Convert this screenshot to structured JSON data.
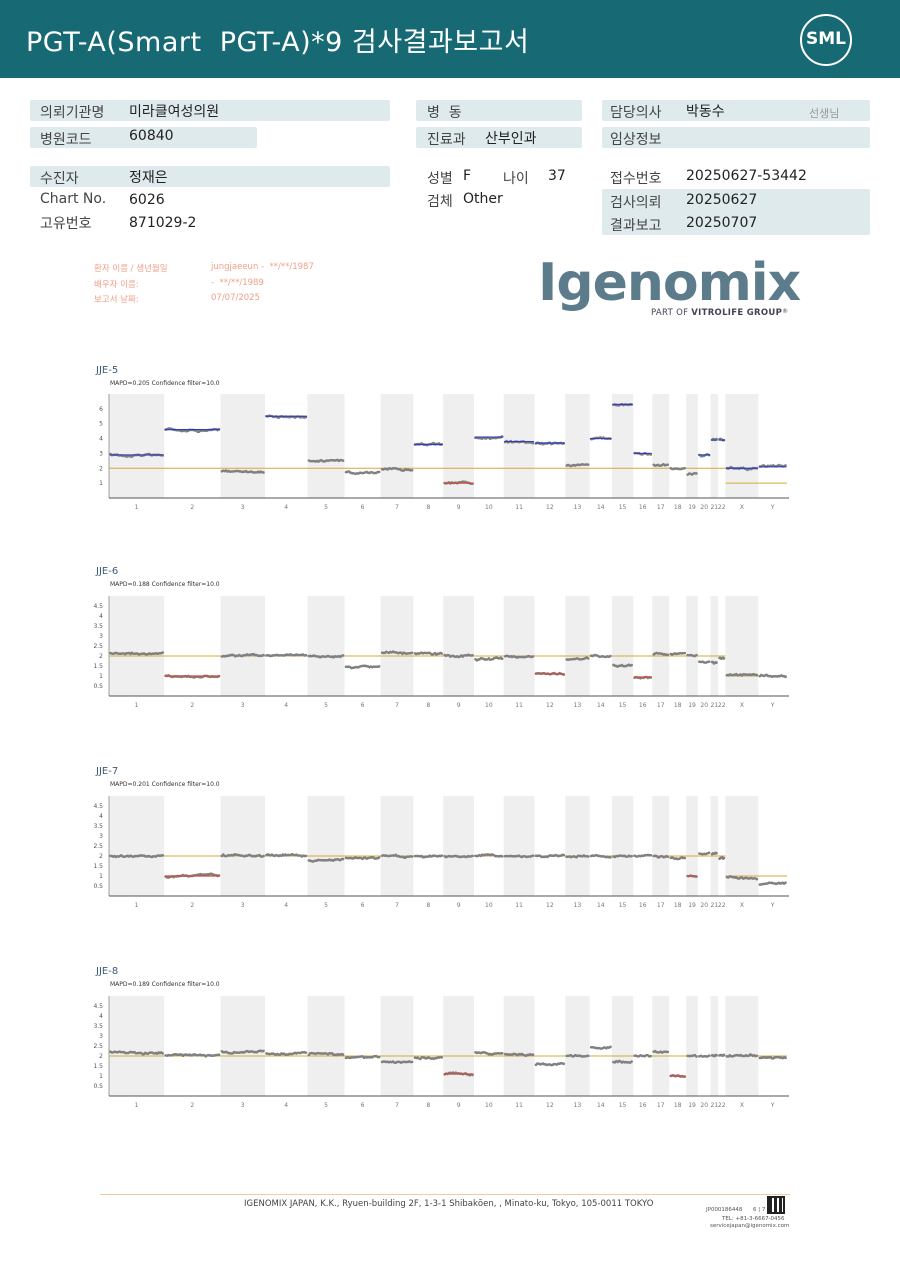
{
  "header": {
    "title": "PGT-A(Smart  PGT-A)*9 검사결과보고서",
    "logo": "SML"
  },
  "info": {
    "institution_label": "의뢰기관명",
    "institution": "미라클여성의원",
    "hospital_code_label": "병원코드",
    "hospital_code": "60840",
    "ward_label": "병  동",
    "ward": "",
    "dept_label": "진료과",
    "dept": "산부인과",
    "doctor_label": "담당의사",
    "doctor": "박동수",
    "doctor_suffix": "선생님",
    "clinical_label": "임상정보",
    "clinical": "",
    "patient_label": "수진자",
    "patient": "정재은",
    "chart_label": "Chart No.",
    "chart_no": "6026",
    "id_label": "고유번호",
    "id_no": "871029-2",
    "sex_label": "성별",
    "sex": "F",
    "age_label": "나이",
    "age": "37",
    "specimen_label": "검체",
    "specimen": "Other",
    "receipt_label": "접수번호",
    "receipt": "20250627-53442",
    "request_label": "검사의뢰",
    "request_date": "20250627",
    "report_label": "결과보고",
    "report_date": "20250707"
  },
  "patient_block": {
    "line1_label": "환자 이름 / 생년월일",
    "line1_value": "jungjaeeun -  **/**/1987",
    "line2_label": "배우자 이름:",
    "line2_value": "-  **/**/1989",
    "line3_label": "보고서 날짜:",
    "line3_value": "07/07/2025"
  },
  "brand": {
    "name": "Igenomix",
    "reg": "®",
    "tagline_prefix": "PART OF ",
    "tagline_bold": "VITROLIFE GROUP",
    "tagline_tm": "®"
  },
  "x_labels": [
    "1",
    "2",
    "3",
    "4",
    "5",
    "6",
    "7",
    "8",
    "9",
    "10",
    "11",
    "12",
    "13",
    "14",
    "15",
    "16",
    "17",
    "18",
    "19",
    "20",
    "21",
    "22",
    "X",
    "Y"
  ],
  "chart_data": [
    {
      "type": "scatter",
      "title": "JJE-5",
      "subtitle": "MAPD=0.205 Confidence filter=10.0",
      "ytick_labels": [
        "1",
        "2",
        "3",
        "4",
        "5",
        "6"
      ],
      "ylim": [
        0,
        7
      ],
      "baseline": 2,
      "segments": [
        {
          "chrom": "1",
          "value": 2.9,
          "color": "blue"
        },
        {
          "chrom": "2",
          "value": 4.6,
          "color": "blue"
        },
        {
          "chrom": "3",
          "value": 1.8,
          "color": "none"
        },
        {
          "chrom": "4",
          "value": 5.5,
          "color": "blue"
        },
        {
          "chrom": "5",
          "value": 2.5,
          "color": "none"
        },
        {
          "chrom": "6",
          "value": 1.8,
          "color": "none"
        },
        {
          "chrom": "7",
          "value": 1.9,
          "color": "none"
        },
        {
          "chrom": "8",
          "value": 3.6,
          "color": "blue"
        },
        {
          "chrom": "9",
          "value": 1.0,
          "color": "red"
        },
        {
          "chrom": "10",
          "value": 4.1,
          "color": "blue"
        },
        {
          "chrom": "11",
          "value": 3.8,
          "color": "blue"
        },
        {
          "chrom": "12",
          "value": 3.7,
          "color": "blue"
        },
        {
          "chrom": "13",
          "value": 2.2,
          "color": "none"
        },
        {
          "chrom": "14",
          "value": 4.0,
          "color": "blue"
        },
        {
          "chrom": "15",
          "value": 6.3,
          "color": "blue"
        },
        {
          "chrom": "16",
          "value": 3.0,
          "color": "blue"
        },
        {
          "chrom": "17",
          "value": 2.2,
          "color": "none"
        },
        {
          "chrom": "18",
          "value": 2.0,
          "color": "none"
        },
        {
          "chrom": "19",
          "value": 1.6,
          "color": "none"
        },
        {
          "chrom": "20",
          "value": 2.9,
          "color": "blue"
        },
        {
          "chrom": "21",
          "value": 3.9,
          "color": "blue"
        },
        {
          "chrom": "22",
          "value": 3.9,
          "color": "blue"
        },
        {
          "chrom": "X",
          "value": 2.0,
          "color": "blue"
        },
        {
          "chrom": "Y",
          "value": 2.1,
          "color": "blue"
        }
      ]
    },
    {
      "type": "scatter",
      "title": "JJE-6",
      "subtitle": "MAPD=0.188 Confidence filter=10.0",
      "ytick_labels": [
        "0.5",
        "1",
        "1.5",
        "2",
        "2.5",
        "3",
        "3.5",
        "4",
        "4.5"
      ],
      "ylim": [
        0,
        5
      ],
      "baseline": 2,
      "segments": [
        {
          "chrom": "1",
          "value": 2.15,
          "color": "none"
        },
        {
          "chrom": "2",
          "value": 1.0,
          "color": "red"
        },
        {
          "chrom": "3",
          "value": 2.0,
          "color": "none"
        },
        {
          "chrom": "4",
          "value": 2.05,
          "color": "none"
        },
        {
          "chrom": "5",
          "value": 2.0,
          "color": "none"
        },
        {
          "chrom": "6",
          "value": 1.45,
          "color": "none"
        },
        {
          "chrom": "7",
          "value": 2.15,
          "color": "none"
        },
        {
          "chrom": "8",
          "value": 2.1,
          "color": "none"
        },
        {
          "chrom": "9",
          "value": 2.0,
          "color": "none"
        },
        {
          "chrom": "10",
          "value": 1.85,
          "color": "none"
        },
        {
          "chrom": "11",
          "value": 2.0,
          "color": "none"
        },
        {
          "chrom": "12",
          "value": 1.1,
          "color": "red"
        },
        {
          "chrom": "13",
          "value": 1.85,
          "color": "none"
        },
        {
          "chrom": "14",
          "value": 2.0,
          "color": "none"
        },
        {
          "chrom": "15",
          "value": 1.55,
          "color": "none"
        },
        {
          "chrom": "16",
          "value": 0.95,
          "color": "red"
        },
        {
          "chrom": "17",
          "value": 2.1,
          "color": "none"
        },
        {
          "chrom": "18",
          "value": 2.1,
          "color": "none"
        },
        {
          "chrom": "19",
          "value": 2.0,
          "color": "none"
        },
        {
          "chrom": "20",
          "value": 1.7,
          "color": "none"
        },
        {
          "chrom": "21",
          "value": 1.7,
          "color": "none"
        },
        {
          "chrom": "22",
          "value": 1.9,
          "color": "none"
        },
        {
          "chrom": "X",
          "value": 1.05,
          "color": "none"
        },
        {
          "chrom": "Y",
          "value": 1.0,
          "color": "none"
        }
      ]
    },
    {
      "type": "scatter",
      "title": "JJE-7",
      "subtitle": "MAPD=0.201 Confidence filter=10.0",
      "ytick_labels": [
        "0.5",
        "1",
        "1.5",
        "2",
        "2.5",
        "3",
        "3.5",
        "4",
        "4.5"
      ],
      "ylim": [
        0,
        5
      ],
      "baseline": 2,
      "segments": [
        {
          "chrom": "1",
          "value": 2.0,
          "color": "none"
        },
        {
          "chrom": "2",
          "value": 1.0,
          "color": "red"
        },
        {
          "chrom": "3",
          "value": 2.0,
          "color": "none"
        },
        {
          "chrom": "4",
          "value": 2.05,
          "color": "none"
        },
        {
          "chrom": "5",
          "value": 1.8,
          "color": "none"
        },
        {
          "chrom": "6",
          "value": 1.9,
          "color": "none"
        },
        {
          "chrom": "7",
          "value": 2.0,
          "color": "none"
        },
        {
          "chrom": "8",
          "value": 2.0,
          "color": "none"
        },
        {
          "chrom": "9",
          "value": 2.0,
          "color": "none"
        },
        {
          "chrom": "10",
          "value": 2.0,
          "color": "none"
        },
        {
          "chrom": "11",
          "value": 2.0,
          "color": "none"
        },
        {
          "chrom": "12",
          "value": 2.0,
          "color": "none"
        },
        {
          "chrom": "13",
          "value": 2.0,
          "color": "none"
        },
        {
          "chrom": "14",
          "value": 2.0,
          "color": "none"
        },
        {
          "chrom": "15",
          "value": 2.0,
          "color": "none"
        },
        {
          "chrom": "16",
          "value": 2.0,
          "color": "none"
        },
        {
          "chrom": "17",
          "value": 2.0,
          "color": "none"
        },
        {
          "chrom": "18",
          "value": 1.9,
          "color": "none"
        },
        {
          "chrom": "19",
          "value": 1.0,
          "color": "red"
        },
        {
          "chrom": "20",
          "value": 2.1,
          "color": "none"
        },
        {
          "chrom": "21",
          "value": 2.1,
          "color": "none"
        },
        {
          "chrom": "22",
          "value": 1.9,
          "color": "none"
        },
        {
          "chrom": "X",
          "value": 0.9,
          "color": "none"
        },
        {
          "chrom": "Y",
          "value": 0.6,
          "color": "none"
        }
      ]
    },
    {
      "type": "scatter",
      "title": "JJE-8",
      "subtitle": "MAPD=0.189 Confidence filter=10.0",
      "ytick_labels": [
        "0.5",
        "1",
        "1.5",
        "2",
        "2.5",
        "3",
        "3.5",
        "4",
        "4.5"
      ],
      "ylim": [
        0,
        5
      ],
      "baseline": 2,
      "segments": [
        {
          "chrom": "1",
          "value": 2.2,
          "color": "none"
        },
        {
          "chrom": "2",
          "value": 2.05,
          "color": "none"
        },
        {
          "chrom": "3",
          "value": 2.2,
          "color": "none"
        },
        {
          "chrom": "4",
          "value": 2.1,
          "color": "none"
        },
        {
          "chrom": "5",
          "value": 2.1,
          "color": "none"
        },
        {
          "chrom": "6",
          "value": 1.9,
          "color": "none"
        },
        {
          "chrom": "7",
          "value": 1.7,
          "color": "none"
        },
        {
          "chrom": "8",
          "value": 1.9,
          "color": "none"
        },
        {
          "chrom": "9",
          "value": 1.1,
          "color": "red"
        },
        {
          "chrom": "10",
          "value": 2.15,
          "color": "none"
        },
        {
          "chrom": "11",
          "value": 2.1,
          "color": "none"
        },
        {
          "chrom": "12",
          "value": 1.6,
          "color": "none"
        },
        {
          "chrom": "13",
          "value": 2.0,
          "color": "none"
        },
        {
          "chrom": "14",
          "value": 2.4,
          "color": "none"
        },
        {
          "chrom": "15",
          "value": 1.7,
          "color": "none"
        },
        {
          "chrom": "16",
          "value": 2.0,
          "color": "none"
        },
        {
          "chrom": "17",
          "value": 2.2,
          "color": "none"
        },
        {
          "chrom": "18",
          "value": 1.0,
          "color": "red"
        },
        {
          "chrom": "19",
          "value": 2.0,
          "color": "none"
        },
        {
          "chrom": "20",
          "value": 2.0,
          "color": "none"
        },
        {
          "chrom": "21",
          "value": 2.0,
          "color": "none"
        },
        {
          "chrom": "22",
          "value": 2.0,
          "color": "none"
        },
        {
          "chrom": "X",
          "value": 2.0,
          "color": "none"
        },
        {
          "chrom": "Y",
          "value": 1.9,
          "color": "none"
        }
      ]
    }
  ],
  "colors": {
    "header": "#176a74",
    "box": "#dfeaed",
    "baseline": "#d6a83a",
    "gain": "#2c3fb8",
    "loss": "#d0483e",
    "dots": "#808080",
    "band": "#efefef"
  },
  "footer": {
    "address": "IGENOMIX JAPAN, K.K., Ryuen-building 2F, 1-3-1 Shibakōen, , Minato-ku, Tokyo, 105-0011 TOKYO",
    "doc_id": "JP000186448",
    "page": "6 | 7",
    "phone": "TEL: +81-3-6667-0456",
    "email": "servicejapan@igenomix.com"
  }
}
